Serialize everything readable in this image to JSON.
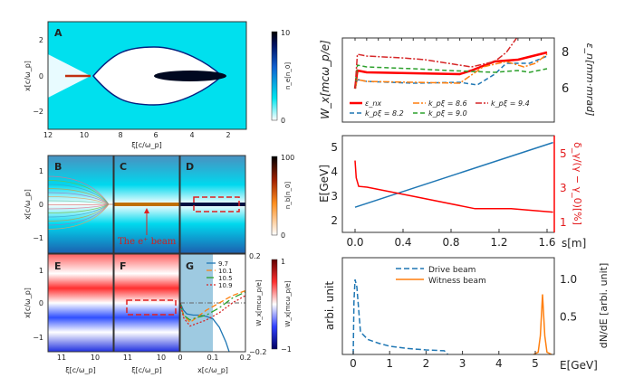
{
  "chart_data": [
    {
      "id": "A",
      "type": "heatmap",
      "panel_label": "A",
      "xlabel": "ξ[c/ω_p]",
      "ylabel": "x[c/ω_p]",
      "xticks": [
        "12",
        "10",
        "8",
        "6",
        "4",
        "2"
      ],
      "yticks": [
        "2",
        "0",
        "−2"
      ],
      "colorbar": {
        "label": "n_e[n_0]",
        "ticks": [
          "10",
          "0"
        ]
      }
    },
    {
      "id": "BCD",
      "type": "heatmap",
      "panel_labels": [
        "B",
        "C",
        "D"
      ],
      "ylabel": "x[c/ω_p]",
      "yticks": [
        "1",
        "0",
        "−1"
      ],
      "annotation": "The e⁺ beam",
      "colorbar": {
        "label": "n_b[n_0]",
        "ticks": [
          "100",
          "0"
        ]
      }
    },
    {
      "id": "EF",
      "type": "heatmap",
      "panel_labels": [
        "E",
        "F"
      ],
      "xlabel": "ξ[c/ω_p]",
      "ylabel": "x[c/ω_p]",
      "xticks": [
        "11",
        "10"
      ],
      "yticks": [
        "1",
        "0",
        "−1"
      ],
      "colorbar": {
        "label": "W_x[mcω_p/e]",
        "ticks": [
          "1",
          "−1"
        ]
      }
    },
    {
      "id": "G",
      "type": "line",
      "panel_label": "G",
      "xlabel": "x[c/ω_p]",
      "ylabel": "W_x[mcω_p/e]",
      "xlim": [
        0,
        0.2
      ],
      "ylim": [
        -0.2,
        0.2
      ],
      "xticks": [
        "0",
        "0.1",
        "0.2"
      ],
      "yticks": [
        "0.2",
        "−0.2"
      ],
      "series": [
        {
          "name": "9.7",
          "color": "#1f77b4",
          "dash": "",
          "x": [
            0,
            0.01,
            0.02,
            0.04,
            0.06,
            0.08,
            0.1,
            0.12,
            0.14,
            0.15
          ],
          "y": [
            0,
            -0.03,
            -0.045,
            -0.05,
            -0.05,
            -0.055,
            -0.065,
            -0.1,
            -0.16,
            -0.2
          ]
        },
        {
          "name": "10.1",
          "color": "#ff7f0e",
          "dash": "6,3",
          "x": [
            0,
            0.01,
            0.03,
            0.05,
            0.08,
            0.12,
            0.16,
            0.2
          ],
          "y": [
            0,
            -0.05,
            -0.08,
            -0.06,
            -0.03,
            0.0,
            0.03,
            0.05
          ]
        },
        {
          "name": "10.5",
          "color": "#2ca02c",
          "dash": "8,3,2,3",
          "x": [
            0,
            0.01,
            0.03,
            0.05,
            0.08,
            0.12,
            0.16,
            0.2
          ],
          "y": [
            0,
            -0.05,
            -0.07,
            -0.06,
            -0.05,
            -0.02,
            0.02,
            0.045
          ]
        },
        {
          "name": "10.9",
          "color": "#d62728",
          "dash": "2,2",
          "x": [
            0,
            0.01,
            0.03,
            0.05,
            0.08,
            0.12,
            0.16,
            0.2
          ],
          "y": [
            0,
            -0.06,
            -0.095,
            -0.085,
            -0.07,
            -0.04,
            0.0,
            0.03
          ]
        }
      ]
    },
    {
      "id": "emittance",
      "type": "line",
      "xlim": [
        -0.08,
        1.7
      ],
      "ylim": [
        4.15,
        8.8
      ],
      "ylabel_left": "W_x[mcω_p/e]",
      "ylabel_right": "ε_n[mm·mrad]",
      "yticks_right": [
        "6",
        "8"
      ],
      "series": [
        {
          "name": "ε_nx",
          "color": "#ff0000",
          "dash": "",
          "width": 2.5,
          "x": [
            0,
            0.02,
            0.1,
            0.5,
            0.9,
            1.0,
            1.2,
            1.4,
            1.65
          ],
          "y": [
            6,
            7,
            6.9,
            6.85,
            6.8,
            7.0,
            7.5,
            7.6,
            8.0
          ]
        },
        {
          "name": "k_pξ = 8.2",
          "color": "#1f77b4",
          "dash": "5,3",
          "x": [
            0,
            0.02,
            0.1,
            0.5,
            0.9,
            1.05,
            1.2,
            1.3,
            1.5,
            1.65
          ],
          "y": [
            6,
            6.5,
            6.4,
            6.3,
            6.35,
            6.2,
            6.8,
            7.4,
            7.4,
            7.8
          ]
        },
        {
          "name": "k_pξ = 8.6",
          "color": "#ff7f0e",
          "dash": "7,2,2,2",
          "x": [
            0,
            0.02,
            0.1,
            0.5,
            0.9,
            1.1,
            1.3,
            1.45,
            1.55,
            1.65
          ],
          "y": [
            6,
            6.5,
            6.4,
            6.35,
            6.3,
            7.2,
            7.5,
            7.2,
            7.4,
            7.9
          ]
        },
        {
          "name": "k_pξ = 9.0",
          "color": "#2ca02c",
          "dash": "5,3",
          "x": [
            0,
            0.02,
            0.1,
            0.5,
            0.8,
            1.2,
            1.4,
            1.5,
            1.65
          ],
          "y": [
            6,
            7.3,
            7.2,
            7.1,
            7.0,
            6.9,
            7.0,
            6.9,
            7.1
          ]
        },
        {
          "name": "k_pξ = 9.4",
          "color": "#d62728",
          "dash": "7,2,2,2",
          "x": [
            0,
            0.02,
            0.1,
            0.4,
            0.6,
            0.9,
            1.0,
            1.2,
            1.3,
            1.4,
            1.45,
            1.5,
            1.65
          ],
          "y": [
            6,
            7.9,
            7.8,
            7.7,
            7.6,
            7.3,
            7.2,
            7.5,
            8.0,
            8.9,
            9.2,
            8.9,
            9.3
          ]
        }
      ]
    },
    {
      "id": "energy",
      "type": "line",
      "xlabel": "s[m]",
      "xlim": [
        -0.08,
        1.7
      ],
      "xticks": [
        "0.0",
        "0.4",
        "0.8",
        "1.2",
        "1.6"
      ],
      "ylabel_left": "E[GeV]",
      "ylim_left": [
        1.52,
        5.48
      ],
      "yticks_left": [
        "2",
        "3",
        "4",
        "5"
      ],
      "ylabel_right": "δ_γ/(γ − γ_0)[%]",
      "ylim_right": [
        0.42,
        6.05
      ],
      "yticks_right": [
        "1",
        "3",
        "5"
      ],
      "series": [
        {
          "name": "E",
          "axis": "left",
          "color": "#1f77b4",
          "x": [
            0,
            1.65
          ],
          "y": [
            2.55,
            5.2
          ]
        },
        {
          "name": "δ",
          "axis": "right",
          "color": "#ff0000",
          "x": [
            0,
            0.01,
            0.03,
            0.1,
            0.5,
            1.0,
            1.3,
            1.65
          ],
          "y": [
            4.6,
            3.6,
            3.1,
            3.05,
            2.5,
            1.8,
            1.8,
            1.6
          ]
        }
      ]
    },
    {
      "id": "spectrum",
      "type": "line",
      "xlabel": "E[GeV]",
      "xlim": [
        -0.3,
        5.52
      ],
      "xticks": [
        "0",
        "1",
        "2",
        "3",
        "4",
        "5"
      ],
      "ylabel_left": "arbi. unit",
      "ylabel_right": "dN/dE [arbi. unit]",
      "ylim": [
        0,
        1.29
      ],
      "yticks_right": [
        "1.0",
        "0.5"
      ],
      "series": [
        {
          "name": "Drive beam",
          "color": "#1f77b4",
          "dash": "6,3",
          "x": [
            0,
            0.02,
            0.05,
            0.1,
            0.2,
            0.4,
            0.7,
            1.0,
            1.5,
            2.0,
            2.5,
            2.6
          ],
          "y": [
            0,
            0.7,
            1.0,
            0.9,
            0.3,
            0.2,
            0.15,
            0.11,
            0.08,
            0.06,
            0.05,
            0
          ]
        },
        {
          "name": "Witness beam",
          "color": "#ff7f0e",
          "dash": "",
          "x": [
            4.95,
            5.08,
            5.14,
            5.2,
            5.26,
            5.32,
            5.45
          ],
          "y": [
            0,
            0.03,
            0.25,
            0.8,
            0.25,
            0.03,
            0
          ]
        }
      ]
    }
  ]
}
